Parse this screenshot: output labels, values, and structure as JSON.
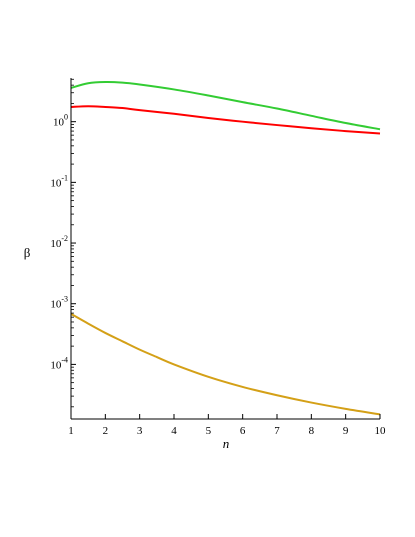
{
  "chart_data": {
    "type": "line",
    "title": "",
    "xlabel": "n",
    "ylabel": "β",
    "xlim": [
      1,
      10
    ],
    "ylim_log10": [
      -4.9,
      0.72
    ],
    "yscale": "log",
    "grid": false,
    "x_ticks": [
      1,
      2,
      3,
      4,
      5,
      6,
      7,
      8,
      9,
      10
    ],
    "y_ticks": [
      {
        "base": "10",
        "exp": "0",
        "value_log10": 0
      },
      {
        "base": "10",
        "exp": "-1",
        "value_log10": -1
      },
      {
        "base": "10",
        "exp": "-2",
        "value_log10": -2
      },
      {
        "base": "10",
        "exp": "-3",
        "value_log10": -3
      },
      {
        "base": "10",
        "exp": "-4",
        "value_log10": -4
      }
    ],
    "series": [
      {
        "color": "#33cc33",
        "x": [
          1,
          1.5,
          2,
          2.5,
          3,
          4,
          5,
          6,
          7,
          8,
          9,
          10
        ],
        "y": [
          3.6,
          4.3,
          4.5,
          4.4,
          4.1,
          3.4,
          2.7,
          2.1,
          1.65,
          1.25,
          0.95,
          0.75
        ]
      },
      {
        "color": "#ff0000",
        "x": [
          1,
          1.5,
          2,
          2.5,
          3,
          4,
          5,
          6,
          7,
          8,
          9,
          10
        ],
        "y": [
          1.75,
          1.8,
          1.75,
          1.68,
          1.55,
          1.35,
          1.15,
          1.0,
          0.88,
          0.78,
          0.7,
          0.64
        ]
      },
      {
        "color": "#d4a017",
        "x": [
          1,
          1.5,
          2,
          2.5,
          3,
          3.5,
          4,
          5,
          6,
          7,
          8,
          9,
          10
        ],
        "y": [
          0.00068,
          0.00047,
          0.00033,
          0.00024,
          0.000175,
          0.000132,
          0.0001,
          6.25e-05,
          4.25e-05,
          3.1e-05,
          2.35e-05,
          1.85e-05,
          1.5e-05
        ]
      }
    ]
  }
}
